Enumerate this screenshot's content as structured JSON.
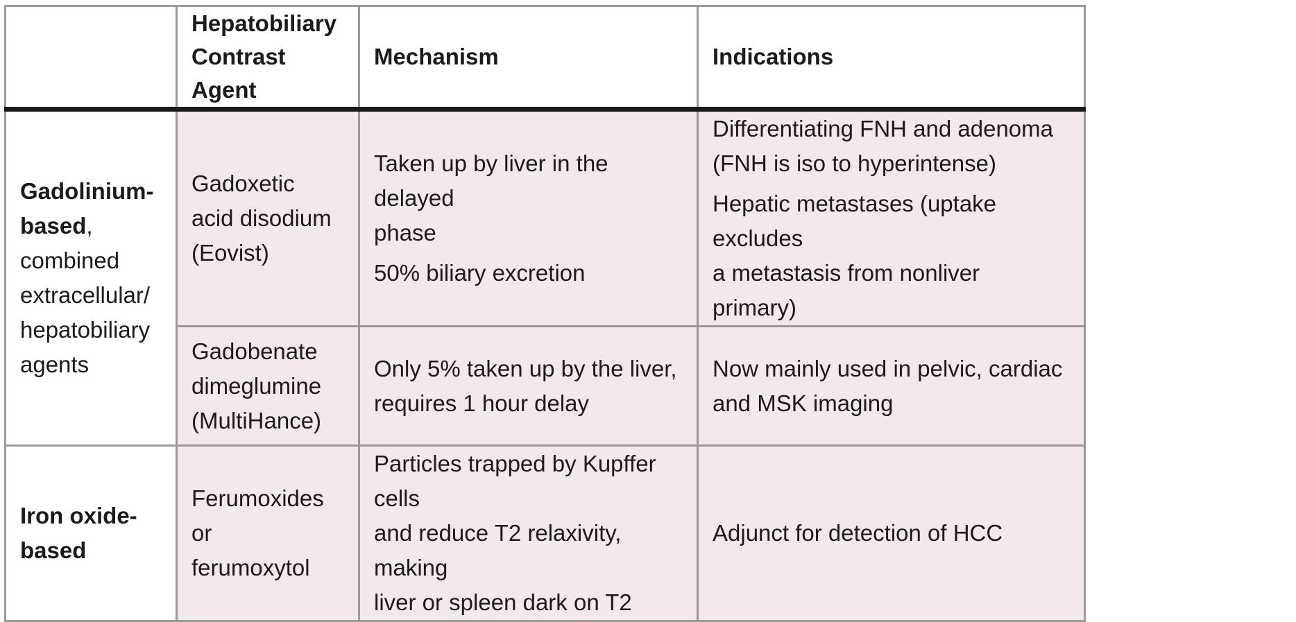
{
  "table": {
    "headers": [
      "",
      "Hepatobiliary Contrast Agent",
      "Mechanism",
      "Indications"
    ],
    "header_lines": {
      "agent": [
        "Hepatobiliary",
        "Contrast Agent"
      ]
    },
    "groups": [
      {
        "bold_lines": [
          "Gadolinium-",
          "based"
        ],
        "bold_suffix": ",",
        "normal_lines": [
          "combined",
          "extracellular/",
          "hepatobiliary",
          "agents"
        ]
      },
      {
        "bold_lines": [
          "Iron oxide-",
          "based"
        ],
        "bold_suffix": "",
        "normal_lines": []
      }
    ],
    "rows": [
      {
        "agent_lines": [
          "Gadoxetic",
          "acid disodium",
          "(Eovist)"
        ],
        "mechanism_paras": [
          [
            "Taken up by liver in the delayed",
            "phase"
          ],
          [
            "50% biliary excretion"
          ]
        ],
        "indication_paras": [
          [
            "Differentiating FNH and adenoma",
            "(FNH is iso to hyperintense)"
          ],
          [
            "Hepatic metastases (uptake excludes",
            "a metastasis from nonliver primary)"
          ]
        ]
      },
      {
        "agent_lines": [
          "Gadobenate",
          "dimeglumine",
          "(MultiHance)"
        ],
        "mechanism_paras": [
          [
            "Only 5% taken up by the liver,",
            "requires 1 hour delay"
          ]
        ],
        "indication_paras": [
          [
            "Now mainly used in pelvic, cardiac",
            "and MSK imaging"
          ]
        ]
      },
      {
        "agent_lines": [
          "Ferumoxides or",
          "ferumoxytol"
        ],
        "mechanism_paras": [
          [
            "Particles trapped by Kupffer cells",
            "and reduce T2 relaxivity, making",
            "liver or spleen dark on T2"
          ]
        ],
        "indication_paras": [
          [
            "Adjunct for detection of HCC"
          ]
        ]
      }
    ]
  },
  "colors": {
    "body_cell": "#f3e9ea",
    "header_bg": "#ffffff",
    "grid": "#9a9a9a",
    "header_rule": "#1a1a1a"
  }
}
